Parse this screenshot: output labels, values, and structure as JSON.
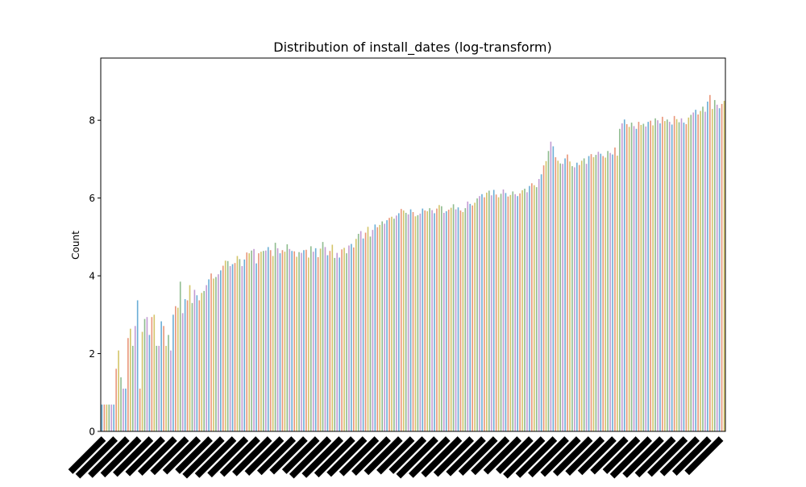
{
  "chart_data": {
    "type": "bar",
    "title": "Distribution of install_dates (log-transform)",
    "xlabel": "",
    "ylabel": "Count",
    "ylim": [
      0,
      9.6
    ],
    "yticks": [
      0,
      2,
      4,
      6,
      8
    ],
    "grid": false,
    "legend": "none",
    "bar_colors": [
      "#6baed6",
      "#e9967a",
      "#d4c56a",
      "#8fbc8f",
      "#c39bd3"
    ],
    "x_tick_labels": "dense, unreadable rotated date labels",
    "values": [
      0.69,
      0.69,
      0.69,
      0.69,
      0.69,
      0.69,
      1.61,
      2.08,
      1.39,
      1.1,
      1.1,
      2.4,
      2.64,
      2.2,
      2.71,
      3.37,
      1.1,
      2.56,
      2.89,
      2.94,
      2.48,
      2.94,
      3.0,
      2.2,
      2.2,
      2.83,
      2.71,
      2.2,
      2.48,
      2.08,
      3.0,
      3.22,
      3.18,
      3.85,
      3.04,
      3.4,
      3.37,
      3.76,
      3.3,
      3.64,
      3.5,
      3.37,
      3.56,
      3.61,
      3.76,
      3.91,
      4.06,
      3.93,
      3.97,
      4.04,
      4.14,
      4.26,
      4.39,
      4.38,
      4.25,
      4.3,
      4.33,
      4.51,
      4.43,
      4.25,
      4.42,
      4.6,
      4.58,
      4.65,
      4.69,
      4.32,
      4.58,
      4.62,
      4.64,
      4.65,
      4.74,
      4.66,
      4.51,
      4.85,
      4.71,
      4.58,
      4.66,
      4.62,
      4.81,
      4.69,
      4.64,
      4.63,
      4.49,
      4.61,
      4.59,
      4.66,
      4.67,
      4.47,
      4.76,
      4.62,
      4.71,
      4.48,
      4.7,
      4.87,
      4.74,
      4.53,
      4.64,
      4.8,
      4.46,
      4.59,
      4.47,
      4.68,
      4.72,
      4.58,
      4.78,
      4.82,
      4.73,
      4.95,
      5.08,
      5.15,
      4.96,
      5.11,
      5.26,
      5.01,
      5.18,
      5.32,
      5.25,
      5.31,
      5.4,
      5.34,
      5.43,
      5.49,
      5.52,
      5.47,
      5.55,
      5.61,
      5.72,
      5.68,
      5.62,
      5.58,
      5.71,
      5.64,
      5.53,
      5.56,
      5.6,
      5.73,
      5.68,
      5.66,
      5.74,
      5.69,
      5.61,
      5.73,
      5.82,
      5.79,
      5.62,
      5.66,
      5.7,
      5.75,
      5.84,
      5.71,
      5.76,
      5.68,
      5.64,
      5.74,
      5.91,
      5.85,
      5.81,
      5.88,
      5.99,
      6.05,
      6.1,
      6.02,
      6.14,
      6.19,
      6.07,
      6.21,
      6.09,
      6.02,
      6.11,
      6.22,
      6.13,
      6.04,
      6.08,
      6.17,
      6.1,
      6.05,
      6.12,
      6.2,
      6.24,
      6.15,
      6.31,
      6.38,
      6.33,
      6.28,
      6.49,
      6.61,
      6.84,
      6.95,
      7.21,
      7.45,
      7.33,
      7.05,
      6.96,
      6.89,
      6.88,
      7.02,
      7.12,
      6.94,
      6.82,
      6.79,
      6.91,
      6.85,
      6.96,
      7.02,
      6.88,
      7.08,
      7.13,
      7.05,
      7.11,
      7.19,
      7.14,
      7.08,
      7.04,
      7.21,
      7.16,
      7.12,
      7.3,
      7.09,
      7.78,
      7.92,
      8.02,
      7.9,
      7.83,
      7.94,
      7.85,
      7.78,
      7.96,
      7.88,
      7.91,
      7.84,
      7.96,
      7.99,
      7.87,
      8.05,
      8.0,
      7.92,
      8.09,
      7.98,
      8.02,
      7.96,
      7.89,
      8.11,
      8.03,
      7.95,
      8.05,
      7.94,
      7.9,
      8.07,
      8.14,
      8.2,
      8.27,
      8.15,
      8.24,
      8.35,
      8.22,
      8.48,
      8.65,
      8.29,
      8.52,
      8.4,
      8.31,
      8.42,
      8.5
    ]
  }
}
